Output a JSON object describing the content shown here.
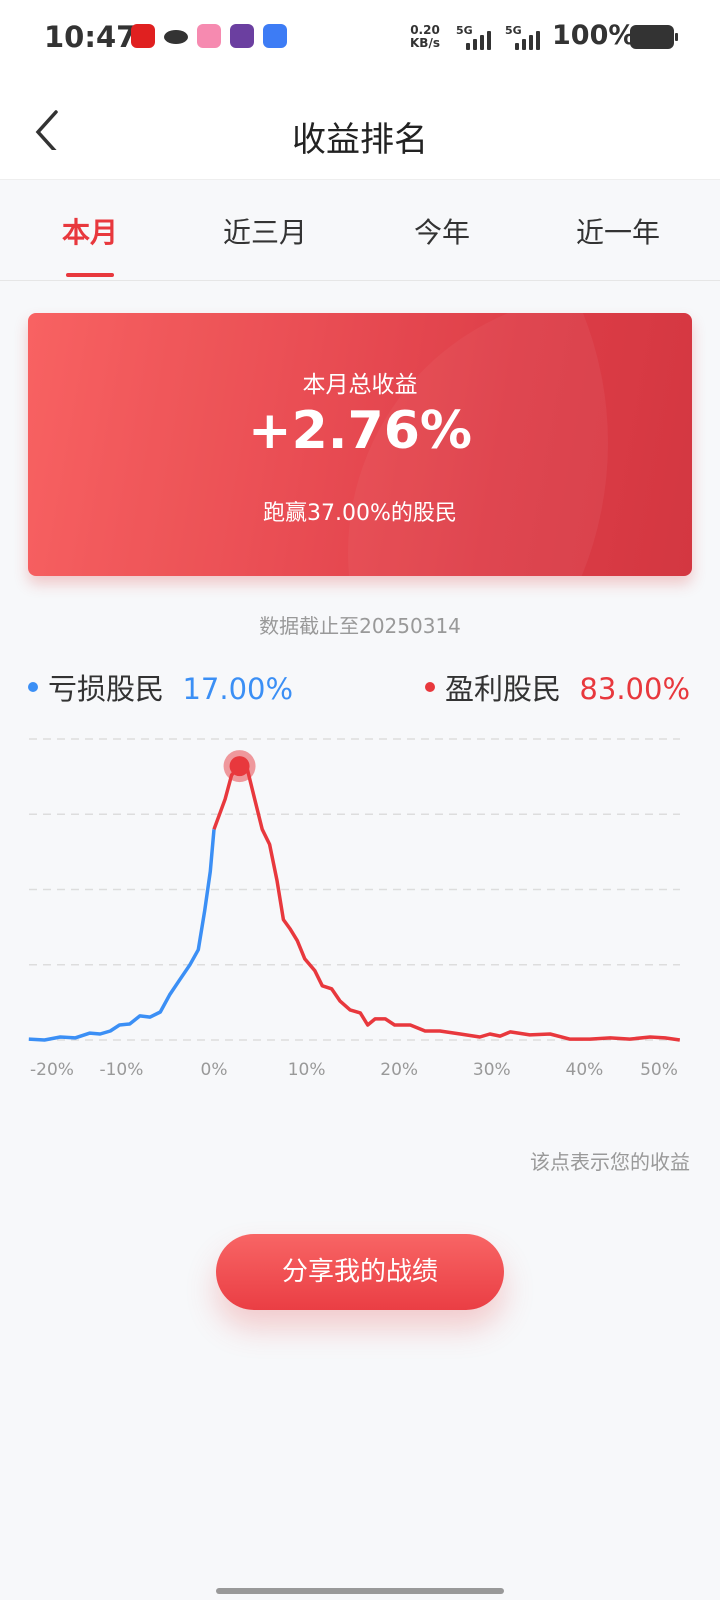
{
  "status_bar": {
    "time": "10:47",
    "net_speed": "0.20",
    "net_unit": "KB/s",
    "sim1": "5G",
    "sim2": "5G",
    "battery": "100%",
    "app_icons": [
      {
        "name": "kfc-app-icon",
        "color": "#e02020"
      },
      {
        "name": "bird-app-icon",
        "color": "#ffffff"
      },
      {
        "name": "bilibili-app-icon",
        "color": "#f68ab0"
      },
      {
        "name": "pi-app-icon",
        "color": "#6b3fa0"
      },
      {
        "name": "bag-app-icon",
        "color": "#3d7cf5"
      }
    ]
  },
  "header": {
    "title": "收益排名"
  },
  "tabs": [
    {
      "label": "本月",
      "active": true
    },
    {
      "label": "近三月"
    },
    {
      "label": "今年"
    },
    {
      "label": "近一年"
    }
  ],
  "summary": {
    "label": "本月总收益",
    "value": "+2.76%",
    "beat_text": "跑赢37.00%的股民"
  },
  "as_of": "数据截止至20250314",
  "legend": {
    "loss_label": "亏损股民",
    "loss_value": "17.00%",
    "profit_label": "盈利股民",
    "profit_value": "83.00%"
  },
  "colors": {
    "accent": "#e8383d",
    "loss": "#3b8ff5",
    "profit": "#e8383d"
  },
  "chart_data": {
    "type": "line",
    "xlabel": "",
    "ylabel": "",
    "xlim": [
      -20,
      50.3
    ],
    "ylim": [
      0,
      100
    ],
    "x_ticks": [
      "-20%",
      "-10%",
      "0%",
      "10%",
      "20%",
      "30%",
      "40%",
      "50%"
    ],
    "x_tick_values": [
      -20,
      -10,
      0,
      10,
      20,
      30,
      40,
      50
    ],
    "grid": "horizontal dashed",
    "highlight": {
      "x": 2.76,
      "y": 91
    },
    "x": [
      -20,
      -18.3,
      -16.6,
      -15,
      -13.4,
      -12.3,
      -11.2,
      -10.2,
      -9.1,
      -8,
      -6.9,
      -5.8,
      -4.8,
      -3.7,
      -2.6,
      -1.7,
      -1,
      -0.4,
      0,
      1.2,
      1.9,
      2.76,
      3.6,
      4.4,
      5.2,
      6,
      6.8,
      7.5,
      8.2,
      9,
      9.8,
      10.9,
      11.7,
      12.7,
      13.6,
      14.7,
      15.8,
      16.6,
      17.4,
      18.5,
      19.5,
      21.2,
      22.8,
      24.4,
      26.6,
      28.7,
      29.8,
      30.9,
      32,
      34.1,
      36.3,
      38.4,
      40.6,
      42.8,
      44.9,
      47.1,
      48.7,
      50.3
    ],
    "y": [
      0.3,
      0,
      1,
      0.7,
      2.3,
      2,
      3,
      5,
      5.3,
      8,
      7.6,
      9.3,
      15,
      20,
      25,
      30,
      43,
      56,
      70,
      80,
      88,
      91,
      90,
      80,
      70,
      65,
      53,
      40,
      37,
      33,
      27,
      23,
      18,
      17,
      13,
      10,
      9,
      5,
      7,
      7,
      5,
      5,
      3,
      3,
      2,
      1,
      2,
      1.3,
      2.7,
      1.7,
      2,
      0.3,
      0.3,
      0.7,
      0.3,
      1,
      0.7,
      0
    ]
  },
  "note": "该点表示您的收益",
  "share_button": "分享我的战绩"
}
